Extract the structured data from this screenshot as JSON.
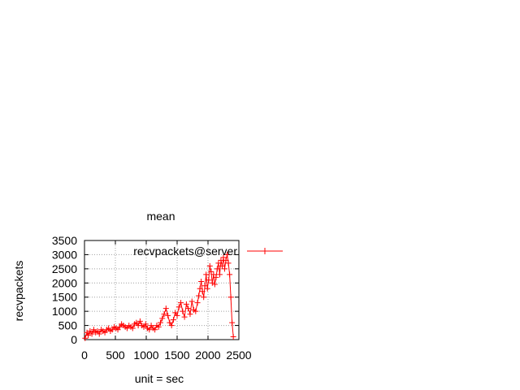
{
  "chart_data": {
    "type": "line",
    "title": "mean",
    "xlabel": "unit = sec",
    "ylabel": "recvpackets",
    "xlim": [
      0,
      2500
    ],
    "ylim": [
      0,
      3500
    ],
    "xticks": [
      0,
      500,
      1000,
      1500,
      2000,
      2500
    ],
    "yticks": [
      0,
      500,
      1000,
      1500,
      2000,
      2500,
      3000,
      3500
    ],
    "grid": true,
    "legend_position": "top-right",
    "series": [
      {
        "name": "recvpackets@server",
        "color": "#ff0000",
        "marker": "plus",
        "x": [
          10,
          40,
          60,
          90,
          120,
          150,
          180,
          210,
          240,
          270,
          300,
          330,
          360,
          390,
          420,
          450,
          480,
          510,
          540,
          570,
          600,
          630,
          660,
          690,
          720,
          750,
          780,
          810,
          840,
          870,
          900,
          930,
          960,
          990,
          1020,
          1050,
          1080,
          1110,
          1140,
          1170,
          1200,
          1230,
          1260,
          1290,
          1320,
          1350,
          1380,
          1410,
          1440,
          1470,
          1500,
          1530,
          1560,
          1590,
          1620,
          1650,
          1680,
          1710,
          1740,
          1770,
          1800,
          1830,
          1850,
          1870,
          1890,
          1910,
          1930,
          1950,
          1970,
          1990,
          2010,
          2030,
          2050,
          2070,
          2090,
          2110,
          2130,
          2150,
          2170,
          2190,
          2210,
          2230,
          2250,
          2270,
          2290,
          2310,
          2330,
          2350,
          2370,
          2390,
          2410
        ],
        "y": [
          50,
          250,
          150,
          300,
          200,
          350,
          250,
          300,
          200,
          350,
          300,
          250,
          350,
          400,
          300,
          350,
          450,
          400,
          350,
          450,
          550,
          500,
          450,
          400,
          500,
          450,
          400,
          550,
          600,
          500,
          650,
          500,
          450,
          550,
          400,
          350,
          500,
          400,
          350,
          500,
          450,
          600,
          750,
          900,
          1100,
          850,
          600,
          500,
          700,
          950,
          850,
          1150,
          1300,
          1000,
          800,
          1250,
          1100,
          900,
          1350,
          1050,
          1000,
          1300,
          1550,
          1800,
          2050,
          1700,
          1500,
          1900,
          2300,
          1800,
          2100,
          2600,
          2400,
          2000,
          2300,
          1950,
          2200,
          2500,
          2700,
          2300,
          2800,
          2600,
          2900,
          2500,
          2800,
          3000,
          2700,
          2300,
          1500,
          600,
          100
        ]
      }
    ]
  }
}
